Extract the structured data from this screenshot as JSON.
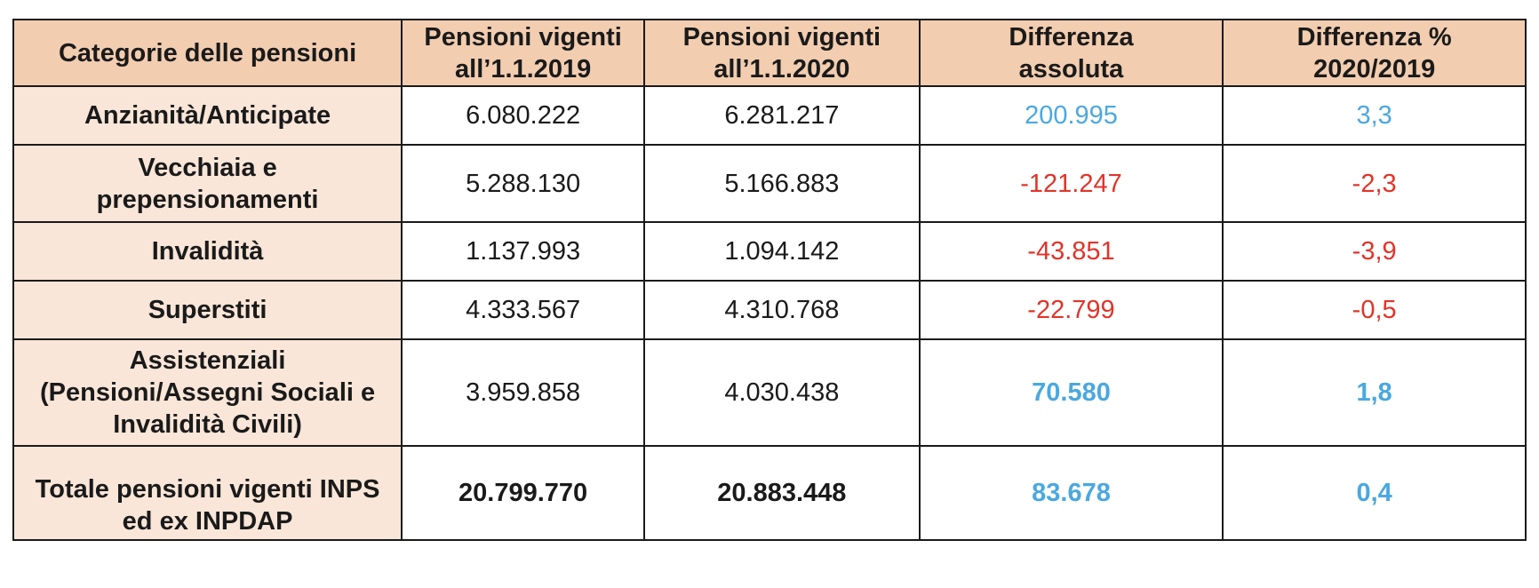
{
  "headers": {
    "category": "Categorie delle pensioni",
    "vig2019_line1": "Pensioni vigenti",
    "vig2019_line2": "all’1.1.2019",
    "vig2020_line1": "Pensioni vigenti",
    "vig2020_line2": "all’1.1.2020",
    "abs_line1": "Differenza",
    "abs_line2": "assoluta",
    "pct_line1": "Differenza %",
    "pct_line2": "2020/2019"
  },
  "rows": [
    {
      "cat_line1": "Anzianità/Anticipate",
      "cat_line2": "",
      "cat_line3": "",
      "v2019": "6.080.222",
      "v2020": "6.281.217",
      "abs": "200.995",
      "pct": "3,3"
    },
    {
      "cat_line1": "Vecchiaia e",
      "cat_line2": "prepensionamenti",
      "cat_line3": "",
      "v2019": "5.288.130",
      "v2020": "5.166.883",
      "abs": "-121.247",
      "pct": "-2,3"
    },
    {
      "cat_line1": "Invalidità",
      "cat_line2": "",
      "cat_line3": "",
      "v2019": "1.137.993",
      "v2020": "1.094.142",
      "abs": "-43.851",
      "pct": "-3,9"
    },
    {
      "cat_line1": "Superstiti",
      "cat_line2": "",
      "cat_line3": "",
      "v2019": "4.333.567",
      "v2020": "4.310.768",
      "abs": "-22.799",
      "pct": "-0,5"
    },
    {
      "cat_line1": "Assistenziali",
      "cat_line2": "(Pensioni/Assegni Sociali e",
      "cat_line3": "Invalidità Civili)",
      "v2019": "3.959.858",
      "v2020": "4.030.438",
      "abs": "70.580",
      "pct": "1,8"
    }
  ],
  "total": {
    "cat_line1": "Totale pensioni vigenti INPS",
    "cat_line2": "ed ex INPDAP",
    "v2019": "20.799.770",
    "v2020": "20.883.448",
    "abs": "83.678",
    "pct": "0,4"
  },
  "colors": {
    "header_bg": "#f2cdb0",
    "category_bg": "#f9e6d8",
    "positive": "#4aa8e0",
    "negative": "#e0342a"
  }
}
